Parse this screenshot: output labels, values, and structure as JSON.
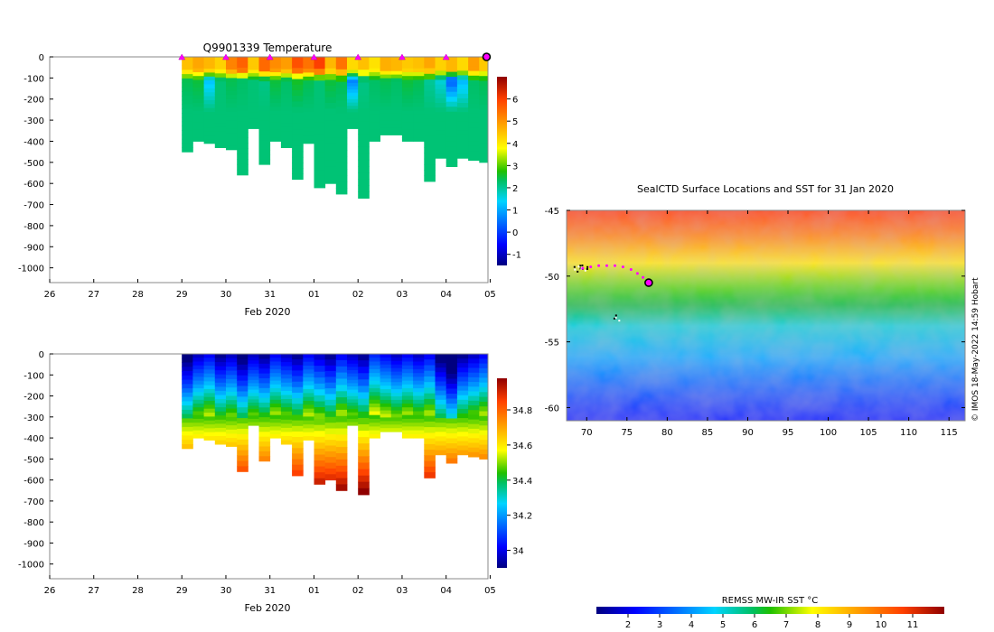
{
  "chart_data": [
    {
      "type": "heatmap",
      "id": "temperature-section",
      "title": "Q9901339  Temperature",
      "xlabel": "Feb 2020",
      "ylabel": "",
      "x_tick_labels": [
        "26",
        "27",
        "28",
        "29",
        "30",
        "31",
        "01",
        "02",
        "03",
        "04",
        "05"
      ],
      "xlim": [
        0,
        9.95
      ],
      "y_ticks": [
        0,
        -100,
        -200,
        -300,
        -400,
        -500,
        -600,
        -700,
        -800,
        -900,
        -1000
      ],
      "ylim": [
        -1070,
        0
      ],
      "profile_marker_days": [
        3,
        4,
        5,
        6,
        7,
        8,
        9
      ],
      "end_marker_day": 10,
      "profiles": {
        "start_days": [
          3,
          3.25,
          3.5,
          3.75,
          4,
          4.25,
          4.5,
          4.75,
          5,
          5.25,
          5.5,
          5.75,
          6,
          6.25,
          6.5,
          6.75,
          7,
          7.25,
          7.5,
          7.75,
          8,
          8.25,
          8.5,
          8.75,
          9,
          9.25,
          9.5,
          9.75
        ],
        "end_days": [
          3.25,
          3.5,
          3.75,
          4,
          4.25,
          4.5,
          4.75,
          5,
          5.25,
          5.5,
          5.75,
          6,
          6.25,
          6.5,
          6.75,
          7,
          7.25,
          7.5,
          7.75,
          8,
          8.25,
          8.5,
          8.75,
          9,
          9.25,
          9.5,
          9.75,
          9.95
        ],
        "max_depths": [
          450,
          400,
          410,
          430,
          440,
          560,
          340,
          510,
          400,
          430,
          580,
          410,
          620,
          600,
          650,
          340,
          670,
          400,
          370,
          370,
          400,
          400,
          590,
          480,
          520,
          480,
          490,
          500
        ],
        "surface_values": [
          4.5,
          4.8,
          4.6,
          4.3,
          5.2,
          5.6,
          4.4,
          5.5,
          5.1,
          4.9,
          5.8,
          5.4,
          6.0,
          4.6,
          5.4,
          4.2,
          4.5,
          4.1,
          4.7,
          4.6,
          4.4,
          4.5,
          4.8,
          4.3,
          4.6,
          4.2,
          4.9,
          4.4
        ],
        "subsurface_values": [
          2.4,
          2.5,
          1.2,
          2.2,
          2.4,
          2.3,
          2.2,
          2.1,
          2.5,
          2.3,
          2.6,
          2.4,
          2.2,
          2.5,
          2.4,
          0.6,
          2.1,
          2.3,
          2.4,
          2.3,
          2.5,
          2.4,
          2.0,
          1.6,
          0.2,
          1.1,
          2.3,
          2.4
        ],
        "deep_value": 2.2
      },
      "colorbar": {
        "min": -1.5,
        "max": 7,
        "ticks": [
          -1,
          0,
          1,
          2,
          3,
          4,
          5,
          6
        ],
        "tick_labels": [
          "-1",
          "0",
          "1",
          "2",
          "3",
          "4",
          "5",
          "6"
        ]
      }
    },
    {
      "type": "heatmap",
      "id": "salinity-section",
      "title": "",
      "xlabel": "Feb 2020",
      "ylabel": "",
      "x_tick_labels": [
        "26",
        "27",
        "28",
        "29",
        "30",
        "31",
        "01",
        "02",
        "03",
        "04",
        "05"
      ],
      "xlim": [
        0,
        9.95
      ],
      "y_ticks": [
        0,
        -100,
        -200,
        -300,
        -400,
        -500,
        -600,
        -700,
        -800,
        -900,
        -1000
      ],
      "ylim": [
        -1070,
        0
      ],
      "profiles": {
        "surface_values": [
          33.85,
          33.95,
          34.0,
          33.9,
          33.95,
          33.85,
          33.95,
          33.9,
          34.0,
          33.95,
          33.9,
          34.0,
          33.95,
          33.9,
          34.0,
          33.95,
          33.9,
          34.05,
          34.0,
          33.95,
          34.0,
          33.95,
          34.0,
          33.85,
          33.75,
          33.9,
          33.95,
          34.0
        ]
      },
      "colorbar": {
        "min": 33.9,
        "max": 34.98,
        "ticks": [
          34.0,
          34.2,
          34.4,
          34.6,
          34.8
        ],
        "tick_labels": [
          "34",
          "34.2",
          "34.4",
          "34.6",
          "34.8"
        ]
      }
    },
    {
      "type": "heatmap",
      "id": "sst-map",
      "title": "SealCTD Surface Locations and SST for 31 Jan 2020",
      "xlabel": "",
      "ylabel": "",
      "x_ticks": [
        70,
        75,
        80,
        85,
        90,
        95,
        100,
        105,
        110,
        115
      ],
      "xlim": [
        67.5,
        117
      ],
      "y_ticks": [
        -45,
        -50,
        -55,
        -60
      ],
      "ylim": [
        -61,
        -45
      ],
      "track": {
        "lon": [
          69.5,
          70.5,
          71.5,
          72.5,
          73.5,
          74.5,
          75.5,
          76.3,
          77.0,
          77.6
        ],
        "lat": [
          -49.4,
          -49.3,
          -49.2,
          -49.2,
          -49.2,
          -49.3,
          -49.5,
          -49.8,
          -50.1,
          -50.5
        ]
      },
      "current_position": {
        "lon": 77.7,
        "lat": -50.5
      },
      "land_points": [
        {
          "lon": 69.3,
          "lat": -49.3
        },
        {
          "lon": 73.5,
          "lat": -53.1
        }
      ],
      "sst_gradient_note": "warmer north, colder south",
      "colorbar": {
        "title": "REMSS MW-IR SST °C",
        "min": 1,
        "max": 12,
        "ticks": [
          2,
          3,
          4,
          5,
          6,
          7,
          8,
          9,
          10,
          11
        ],
        "tick_labels": [
          "2",
          "3",
          "4",
          "5",
          "6",
          "7",
          "8",
          "9",
          "10",
          "11"
        ]
      },
      "credit": "© IMOS 18-May-2022 14:59 Hobart"
    }
  ]
}
